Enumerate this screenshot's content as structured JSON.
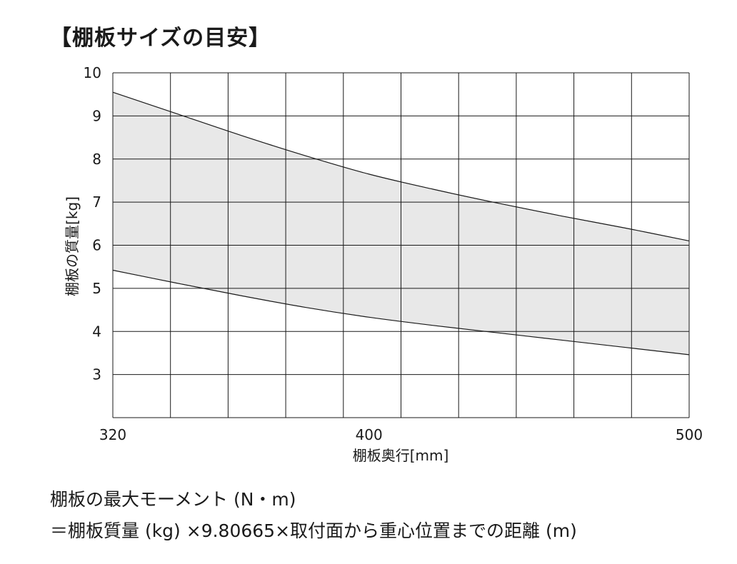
{
  "chart_data": {
    "type": "area",
    "title": "【棚板サイズの目安】",
    "xlabel": "棚板奥行[mm]",
    "ylabel": "棚板の質量[kg]",
    "xlim": [
      320,
      500
    ],
    "ylim": [
      2,
      10
    ],
    "x_ticks": [
      320,
      400,
      500
    ],
    "y_ticks": [
      3,
      4,
      5,
      6,
      7,
      8,
      9,
      10
    ],
    "grid": true,
    "band_color": "#e8e8e8",
    "series": [
      {
        "role": "upper",
        "x": [
          320,
          340,
          360,
          380,
          400,
          420,
          440,
          460,
          480,
          500
        ],
        "values": [
          9.55,
          9.05,
          8.55,
          8.08,
          7.65,
          7.3,
          6.98,
          6.68,
          6.4,
          6.1
        ]
      },
      {
        "role": "lower",
        "x": [
          320,
          340,
          360,
          380,
          400,
          420,
          440,
          460,
          480,
          500
        ],
        "values": [
          5.42,
          5.12,
          4.83,
          4.56,
          4.33,
          4.14,
          3.97,
          3.8,
          3.63,
          3.46
        ]
      }
    ]
  },
  "notes": {
    "line1": "棚板の最大モーメント (N・m)",
    "line2": "＝棚板質量 (kg) ×9.80665×取付面から重心位置までの距離 (m)"
  }
}
